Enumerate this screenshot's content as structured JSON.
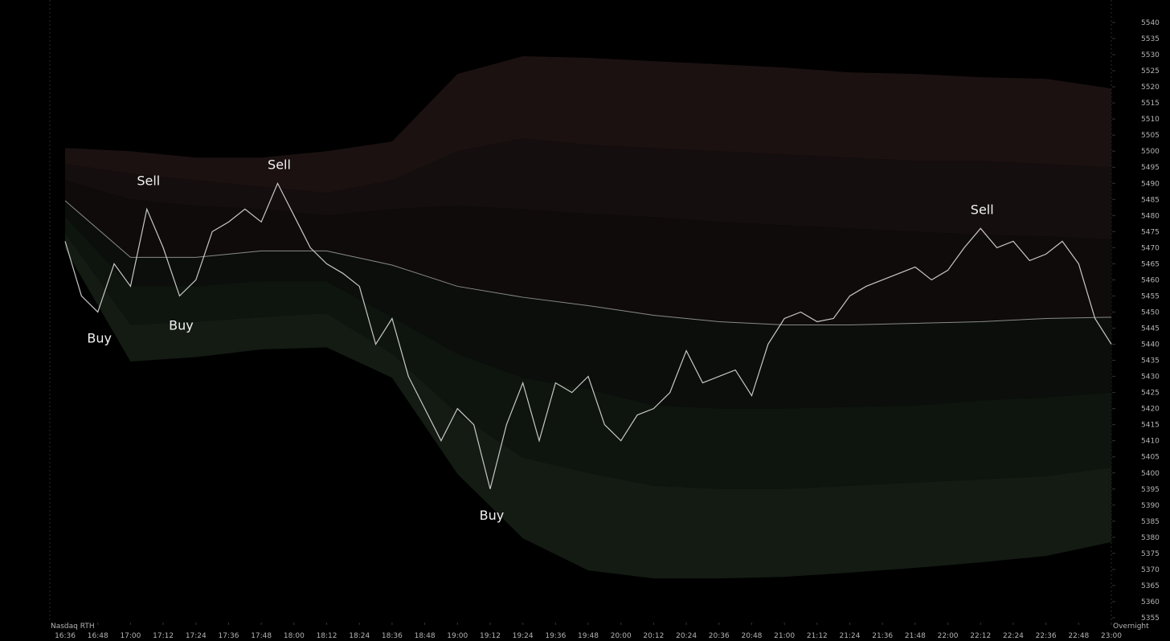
{
  "chart_data": {
    "type": "line",
    "left_label": "Nasdaq RTH",
    "right_label": "Overnight",
    "xlim": [
      "16:30",
      "23:00"
    ],
    "xticks": [
      "16:36",
      "16:48",
      "17:00",
      "17:12",
      "17:24",
      "17:36",
      "17:48",
      "18:00",
      "18:12",
      "18:24",
      "18:36",
      "18:48",
      "19:00",
      "19:12",
      "19:24",
      "19:36",
      "19:48",
      "20:00",
      "20:12",
      "20:24",
      "20:36",
      "20:48",
      "21:00",
      "21:12",
      "21:24",
      "21:36",
      "21:48",
      "22:00",
      "22:12",
      "22:24",
      "22:36",
      "22:48",
      "23:00"
    ],
    "ylim": [
      5355,
      5540
    ],
    "yticks": [
      5355,
      5360,
      5365,
      5370,
      5375,
      5380,
      5385,
      5390,
      5395,
      5400,
      5405,
      5410,
      5415,
      5420,
      5425,
      5430,
      5435,
      5440,
      5445,
      5450,
      5455,
      5460,
      5465,
      5470,
      5475,
      5480,
      5485,
      5490,
      5495,
      5500,
      5505,
      5510,
      5515,
      5520,
      5525,
      5530,
      5535,
      5540
    ],
    "x": [
      "16:36",
      "16:42",
      "16:48",
      "16:54",
      "17:00",
      "17:06",
      "17:12",
      "17:18",
      "17:24",
      "17:30",
      "17:36",
      "17:42",
      "17:48",
      "17:54",
      "18:00",
      "18:06",
      "18:12",
      "18:18",
      "18:24",
      "18:30",
      "18:36",
      "18:42",
      "18:48",
      "18:54",
      "19:00",
      "19:06",
      "19:12",
      "19:18",
      "19:24",
      "19:30",
      "19:36",
      "19:42",
      "19:48",
      "19:54",
      "20:00",
      "20:06",
      "20:12",
      "20:18",
      "20:24",
      "20:30",
      "20:36",
      "20:42",
      "20:48",
      "20:54",
      "21:00",
      "21:06",
      "21:12",
      "21:18",
      "21:24",
      "21:30",
      "21:36",
      "21:42",
      "21:48",
      "21:54",
      "22:00",
      "22:06",
      "22:12",
      "22:18",
      "22:24",
      "22:30",
      "22:36",
      "22:42",
      "22:48",
      "22:54",
      "23:00"
    ],
    "series": [
      {
        "color": "#c8c8c8",
        "values": [
          5472,
          5455,
          5450,
          5465,
          5458,
          5482,
          5470,
          5455,
          5460,
          5475,
          5478,
          5482,
          5478,
          5490,
          5480,
          5470,
          5465,
          5462,
          5458,
          5440,
          5448,
          5430,
          5420,
          5410,
          5420,
          5415,
          5395,
          5415,
          5428,
          5410,
          5428,
          5425,
          5430,
          5415,
          5410,
          5418,
          5420,
          5425,
          5438,
          5428,
          5430,
          5432,
          5424,
          5440,
          5448,
          5450,
          5447,
          5448,
          5455,
          5458,
          5460,
          5462,
          5464,
          5460,
          5463,
          5470,
          5476,
          5470,
          5472,
          5466,
          5468,
          5472,
          5465,
          5448,
          5440
        ]
      }
    ],
    "band_x": [
      "16:36",
      "17:00",
      "17:24",
      "17:48",
      "18:12",
      "18:36",
      "19:00",
      "19:24",
      "19:48",
      "20:12",
      "20:36",
      "21:00",
      "21:24",
      "21:48",
      "22:12",
      "22:36",
      "23:00"
    ],
    "bands": [
      {
        "color": "#1c1111",
        "values": [
          5501,
          5500,
          5498,
          5498,
          5500,
          5503,
          5524,
          5529.5,
          5529,
          5528,
          5527,
          5526,
          5524.5,
          5524,
          5523,
          5522.5,
          5519.5
        ]
      },
      {
        "color": "#150e0e",
        "values": [
          5496,
          5493,
          5491,
          5489,
          5487,
          5491,
          5500,
          5504,
          5502,
          5501,
          5500,
          5499,
          5498,
          5497,
          5497,
          5496,
          5495
        ]
      },
      {
        "color": "#0f0b0b",
        "values": [
          5491,
          5485,
          5483,
          5482,
          5480,
          5482,
          5483,
          5482,
          5480.5,
          5479.5,
          5478,
          5477,
          5476,
          5475,
          5474,
          5473.5,
          5472.6
        ]
      },
      {
        "color": "#8a8a8a",
        "values": [
          5484.6,
          5467,
          5467,
          5469,
          5469,
          5464.6,
          5458,
          5454.6,
          5452,
          5449,
          5447,
          5446,
          5446,
          5446.5,
          5447,
          5448,
          5448.4
        ]
      },
      {
        "color": "#0b0e0b",
        "values": [
          5479.6,
          5458,
          5458,
          5459.6,
          5459.6,
          5448.4,
          5437,
          5429.6,
          5426,
          5421,
          5420,
          5420,
          5420.5,
          5421,
          5422.5,
          5423.5,
          5425
        ]
      },
      {
        "color": "#0e140e",
        "values": [
          5474.6,
          5446,
          5447,
          5448.4,
          5449.6,
          5437,
          5418.4,
          5404.7,
          5400,
          5396,
          5395,
          5395,
          5396,
          5397,
          5398,
          5399,
          5401.7
        ]
      }
    ],
    "lower_edge": {
      "color": "#131b13",
      "values": [
        5469.6,
        5434.6,
        5436,
        5438.4,
        5439,
        5429.6,
        5399.7,
        5379.7,
        5369.7,
        5367.2,
        5367.2,
        5367.7,
        5369,
        5370.5,
        5372.2,
        5374.2,
        5378.5
      ]
    },
    "annotations": [
      {
        "text": "Buy",
        "x": "16:48",
        "y": 5447
      },
      {
        "text": "Sell",
        "x": "17:06",
        "y": 5487
      },
      {
        "text": "Buy",
        "x": "17:18",
        "y": 5451
      },
      {
        "text": "Sell",
        "x": "17:54",
        "y": 5492
      },
      {
        "text": "Buy",
        "x": "19:12",
        "y": 5392
      },
      {
        "text": "Sell",
        "x": "22:12",
        "y": 5478
      }
    ]
  }
}
